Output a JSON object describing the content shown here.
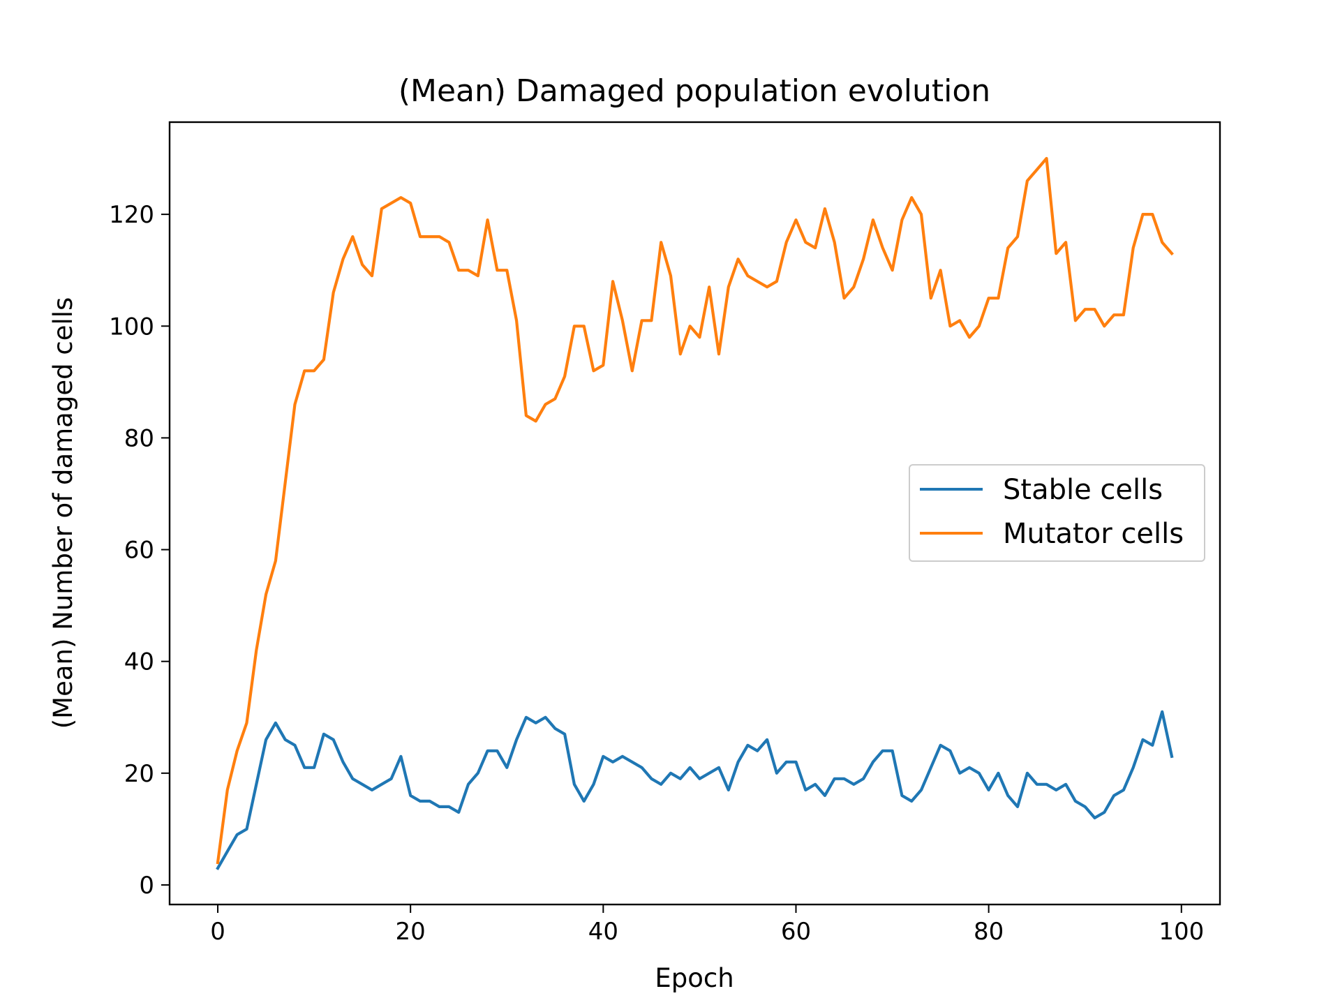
{
  "chart_data": {
    "type": "line",
    "title": "(Mean) Damaged population evolution",
    "xlabel": "Epoch",
    "ylabel": "(Mean) Number of damaged cells",
    "xlim": [
      -5,
      104
    ],
    "ylim": [
      -3.5,
      136.5
    ],
    "xticks": [
      0,
      20,
      40,
      60,
      80,
      100
    ],
    "yticks": [
      0,
      20,
      40,
      60,
      80,
      100,
      120
    ],
    "grid": false,
    "legend_position": "center-right",
    "x": [
      0,
      1,
      2,
      3,
      4,
      5,
      6,
      7,
      8,
      9,
      10,
      11,
      12,
      13,
      14,
      15,
      16,
      17,
      18,
      19,
      20,
      21,
      22,
      23,
      24,
      25,
      26,
      27,
      28,
      29,
      30,
      31,
      32,
      33,
      34,
      35,
      36,
      37,
      38,
      39,
      40,
      41,
      42,
      43,
      44,
      45,
      46,
      47,
      48,
      49,
      50,
      51,
      52,
      53,
      54,
      55,
      56,
      57,
      58,
      59,
      60,
      61,
      62,
      63,
      64,
      65,
      66,
      67,
      68,
      69,
      70,
      71,
      72,
      73,
      74,
      75,
      76,
      77,
      78,
      79,
      80,
      81,
      82,
      83,
      84,
      85,
      86,
      87,
      88,
      89,
      90,
      91,
      92,
      93,
      94,
      95,
      96,
      97,
      98,
      99
    ],
    "series": [
      {
        "name": "Stable cells",
        "color": "#1f77b4",
        "values": [
          3,
          6,
          9,
          10,
          18,
          26,
          29,
          26,
          25,
          21,
          21,
          27,
          26,
          22,
          19,
          18,
          17,
          18,
          19,
          23,
          16,
          15,
          15,
          14,
          14,
          13,
          18,
          20,
          24,
          24,
          21,
          26,
          30,
          29,
          30,
          28,
          27,
          18,
          15,
          18,
          23,
          22,
          23,
          22,
          21,
          19,
          18,
          20,
          19,
          21,
          19,
          20,
          21,
          17,
          22,
          25,
          24,
          26,
          20,
          22,
          22,
          17,
          18,
          16,
          19,
          19,
          18,
          19,
          22,
          24,
          24,
          16,
          15,
          17,
          21,
          25,
          24,
          20,
          21,
          20,
          17,
          20,
          16,
          14,
          20,
          18,
          18,
          17,
          18,
          15,
          14,
          12,
          13,
          16,
          17,
          21,
          26,
          25,
          31,
          23
        ]
      },
      {
        "name": "Mutator cells",
        "color": "#ff7f0e",
        "values": [
          4,
          17,
          24,
          29,
          42,
          52,
          58,
          72,
          86,
          92,
          92,
          94,
          106,
          112,
          116,
          111,
          109,
          121,
          122,
          123,
          122,
          116,
          116,
          116,
          115,
          110,
          110,
          109,
          119,
          110,
          110,
          101,
          84,
          83,
          86,
          87,
          91,
          100,
          100,
          92,
          93,
          108,
          101,
          92,
          101,
          101,
          115,
          109,
          95,
          100,
          98,
          107,
          95,
          107,
          112,
          109,
          108,
          107,
          108,
          115,
          119,
          115,
          114,
          121,
          115,
          105,
          107,
          112,
          119,
          114,
          110,
          119,
          123,
          120,
          105,
          110,
          100,
          101,
          98,
          100,
          105,
          105,
          114,
          116,
          126,
          128,
          130,
          113,
          115,
          101,
          103,
          103,
          100,
          102,
          102,
          114,
          120,
          120,
          115,
          113
        ]
      }
    ]
  }
}
